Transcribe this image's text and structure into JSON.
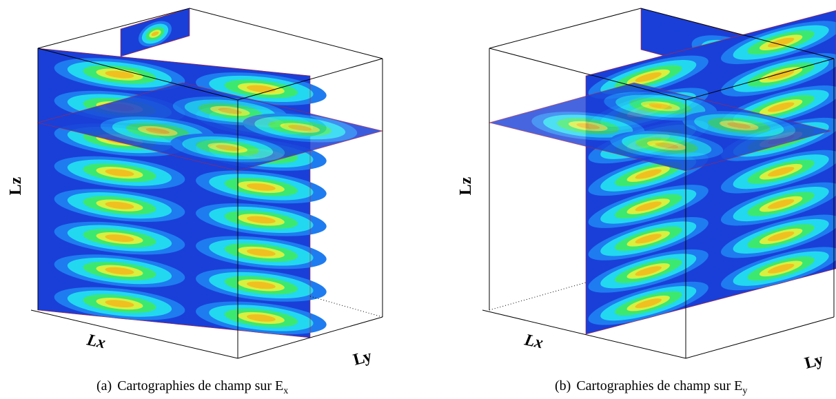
{
  "panels": [
    {
      "axes": {
        "z": "Lz",
        "x": "Lx",
        "y": "Ly"
      },
      "caption": {
        "label": "(a)",
        "text": "Cartographies de champ sur E",
        "subscript": "x"
      }
    },
    {
      "axes": {
        "z": "Lz",
        "x": "Lx",
        "y": "Ly"
      },
      "caption": {
        "label": "(b)",
        "text": "Cartographies de champ sur E",
        "subscript": "y"
      }
    }
  ]
}
